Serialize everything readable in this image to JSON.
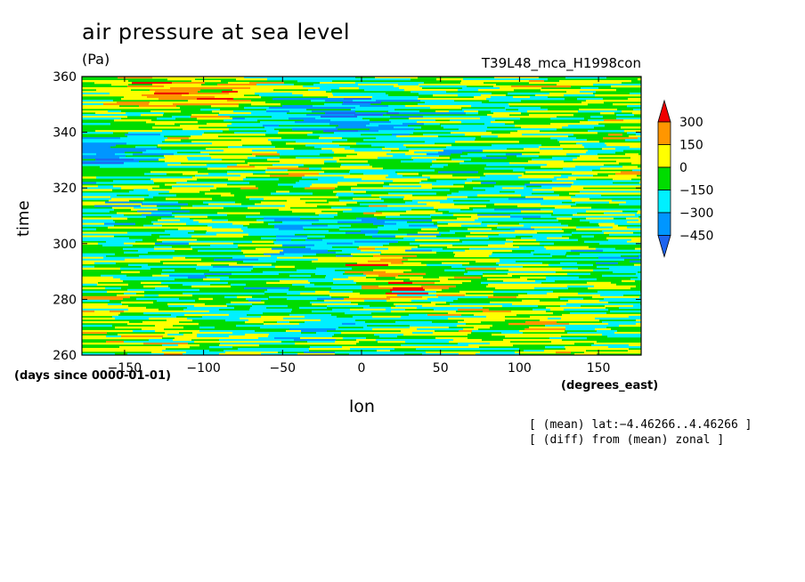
{
  "chart_data": {
    "type": "heatmap",
    "title": "air pressure at sea level",
    "units": "(Pa)",
    "run_label": "T39L48_mca_H1998con",
    "xlabel": "lon",
    "xunits": "(degrees_east)",
    "ylabel": "time",
    "yunits": "(days since 0000-01-01)",
    "xlim": [
      -177,
      177
    ],
    "ylim": [
      260,
      360
    ],
    "xticks": [
      -150,
      -100,
      -50,
      0,
      50,
      100,
      150
    ],
    "yticks": [
      260,
      280,
      300,
      320,
      340,
      360
    ],
    "xtick_labels": [
      "−150",
      "−100",
      "−50",
      "0",
      "50",
      "100",
      "150"
    ],
    "ytick_labels": [
      "260",
      "280",
      "300",
      "320",
      "340",
      "360"
    ],
    "colorbar": {
      "levels": [
        -450,
        -300,
        -150,
        0,
        150,
        300
      ],
      "labels": [
        "−450",
        "−300",
        "−150",
        "0",
        "150",
        "300"
      ],
      "colors": [
        "#1e64f0",
        "#0096ff",
        "#00f0ff",
        "#00dc00",
        "#ffff00",
        "#ff9600",
        "#f00000"
      ]
    },
    "notes": [
      "[ (mean) lat:−4.46266..4.46266 ]",
      "[ (diff) from (mean) zonal ]"
    ],
    "features": [
      {
        "lon_range": [
          -150,
          -60
        ],
        "time_range": [
          350,
          358
        ],
        "value_class": "high"
      },
      {
        "lon_range": [
          -80,
          40
        ],
        "time_range": [
          340,
          352
        ],
        "value_class": "low"
      },
      {
        "lon_range": [
          -180,
          -120
        ],
        "time_range": [
          328,
          340
        ],
        "value_class": "low"
      },
      {
        "lon_range": [
          0,
          30
        ],
        "time_range": [
          280,
          300
        ],
        "value_class": "high"
      },
      {
        "lon_range": [
          -60,
          40
        ],
        "time_range": [
          295,
          310
        ],
        "value_class": "low"
      }
    ]
  }
}
